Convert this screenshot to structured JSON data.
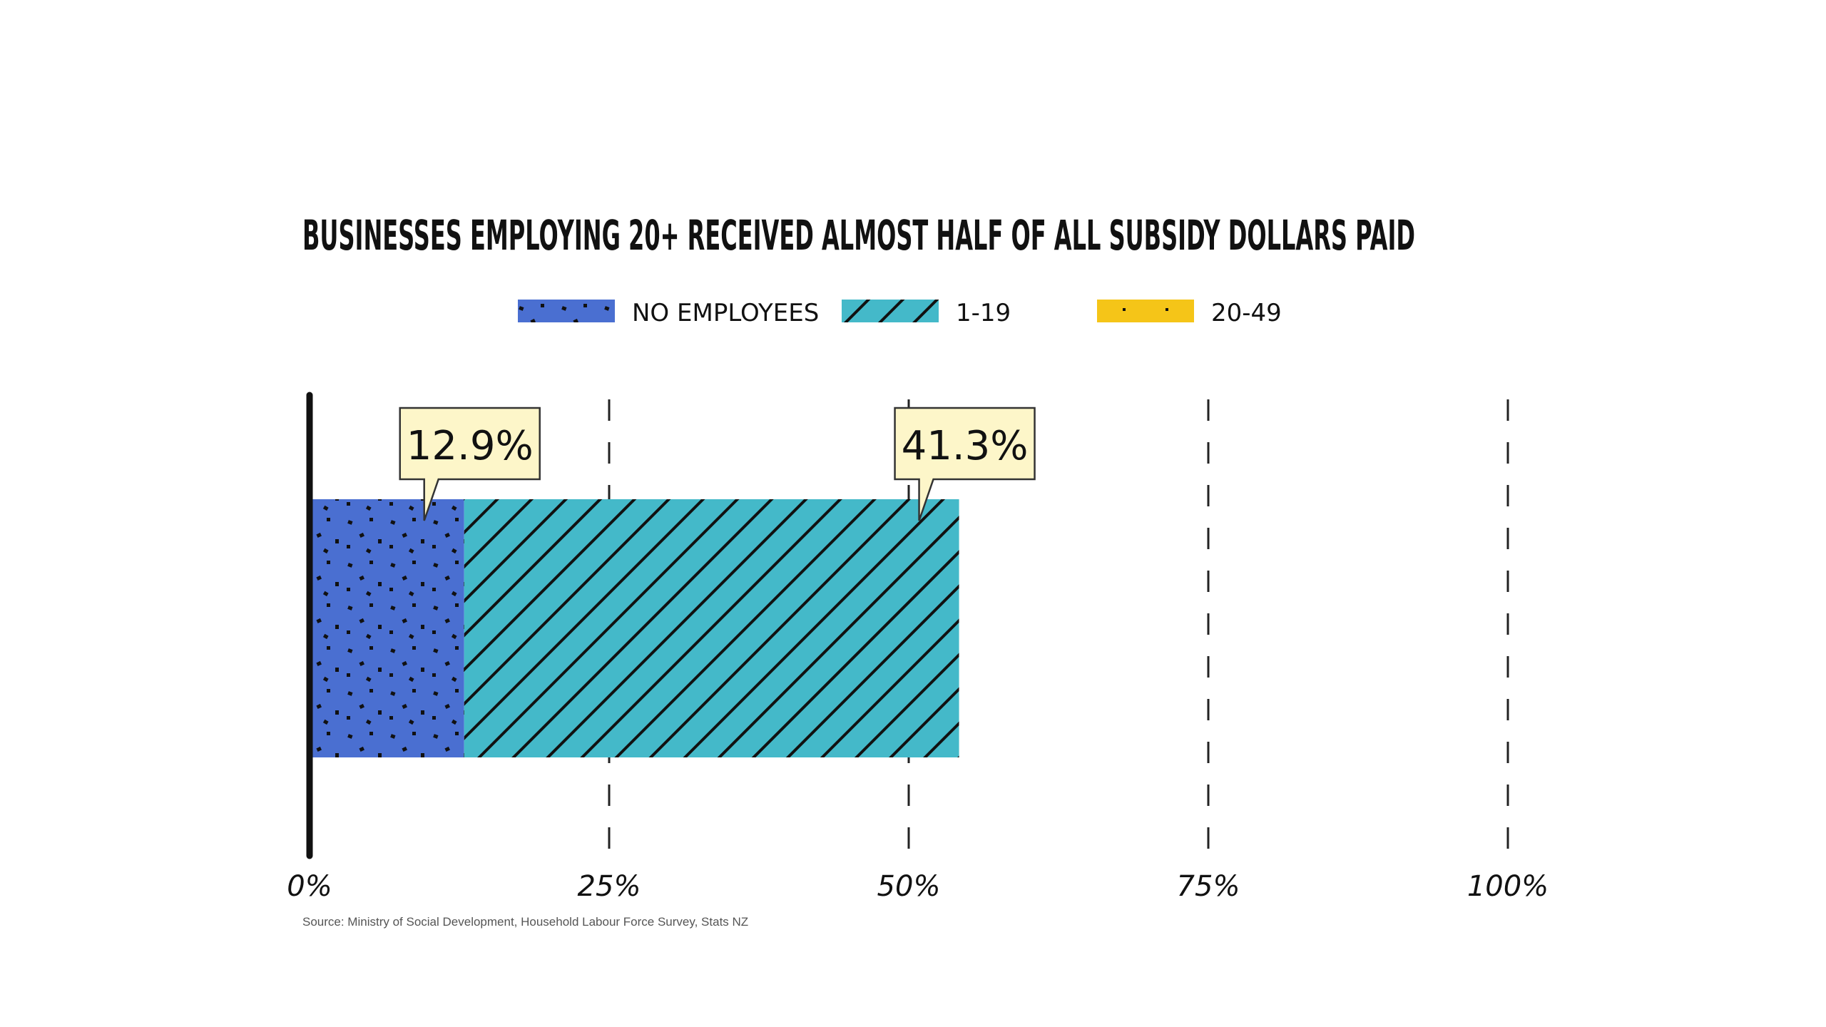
{
  "chart_data": {
    "type": "bar",
    "orientation": "horizontal",
    "stacked": true,
    "title": "BUSINESSES EMPLOYING 20+ RECEIVED ALMOST HALF OF ALL SUBSIDY DOLLARS PAID",
    "xlim": [
      0,
      100
    ],
    "x_ticks": [
      0,
      25,
      50,
      75,
      100
    ],
    "x_tick_labels": [
      "0%",
      "25%",
      "50%",
      "75%",
      "100%"
    ],
    "grid": true,
    "legend_position": "top",
    "series": [
      {
        "name": "NO EMPLOYEES",
        "value": 12.9,
        "color": "#4a6fd1",
        "pattern": "dots"
      },
      {
        "name": "1-19",
        "value": 41.3,
        "color": "#44b9c9",
        "pattern": "diagonal-hatch"
      },
      {
        "name": "20-49",
        "value": null,
        "color": "#f5c518",
        "pattern": "dots"
      }
    ],
    "annotations": [
      {
        "text": "12.9%",
        "series": "NO EMPLOYEES"
      },
      {
        "text": "41.3%",
        "series": "1-19"
      }
    ],
    "source": "Source: Ministry of Social Development, Household Labour Force Survey, Stats NZ"
  }
}
